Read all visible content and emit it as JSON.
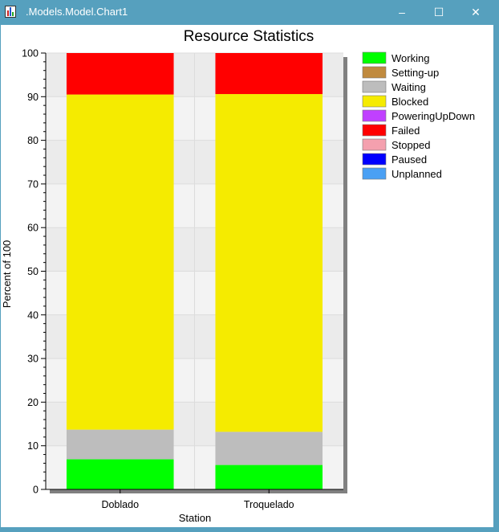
{
  "window": {
    "title": ".Models.Model.Chart1",
    "minimize_glyph": "‒",
    "maximize_glyph": "☐",
    "close_glyph": "✕"
  },
  "chart_data": {
    "type": "bar",
    "stacked": true,
    "title": "Resource Statistics",
    "xlabel": "Station",
    "ylabel": "Percent of 100",
    "ylim": [
      0,
      100
    ],
    "yticks": [
      0,
      10,
      20,
      30,
      40,
      50,
      60,
      70,
      80,
      90,
      100
    ],
    "grid": true,
    "legend_position": "right",
    "categories": [
      "Doblado",
      "Troquelado"
    ],
    "series": [
      {
        "name": "Working",
        "color": "#00ff00",
        "values": [
          6.9,
          5.6
        ]
      },
      {
        "name": "Setting-up",
        "color": "#c08a3e",
        "values": [
          0,
          0
        ]
      },
      {
        "name": "Waiting",
        "color": "#bdbdbd",
        "values": [
          6.8,
          7.6
        ]
      },
      {
        "name": "Blocked",
        "color": "#f5eb00",
        "values": [
          76.8,
          77.4
        ]
      },
      {
        "name": "PoweringUpDown",
        "color": "#c040ff",
        "values": [
          0,
          0
        ]
      },
      {
        "name": "Failed",
        "color": "#ff0000",
        "values": [
          9.5,
          9.4
        ]
      },
      {
        "name": "Stopped",
        "color": "#f4a0ae",
        "values": [
          0,
          0
        ]
      },
      {
        "name": "Paused",
        "color": "#0000ff",
        "values": [
          0,
          0
        ]
      },
      {
        "name": "Unplanned",
        "color": "#4aa0f4",
        "values": [
          0,
          0
        ]
      }
    ]
  }
}
